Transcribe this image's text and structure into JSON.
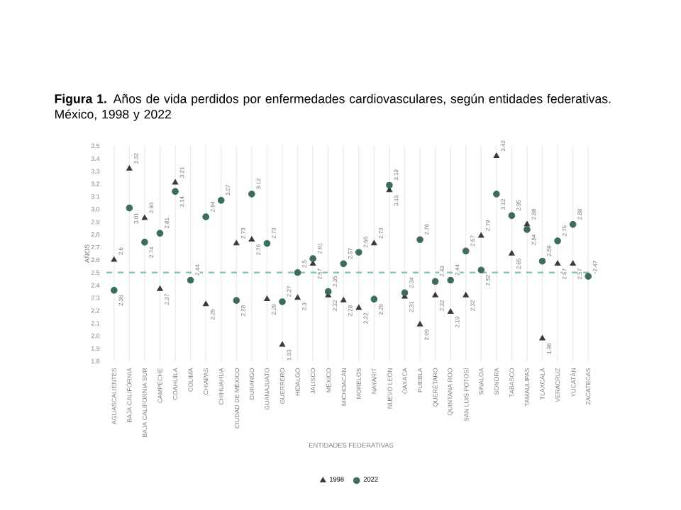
{
  "chart_data": {
    "type": "scatter",
    "title": "**Figura 1.** Años de vida perdidos por enfermedades cardiovasculares, según entidades federativas. México, 1998 y 2022",
    "xlabel": "ENTIDADES FEDERATIVAS",
    "ylabel": "AÑOS",
    "categories": [
      "AGUASCALIENTES",
      "BAJA CALIFORNIA",
      "BAJA CALIFORNIA SUR",
      "CAMPECHE",
      "COAHUILA",
      "COLIMA",
      "CHIAPAS",
      "CHIHUAHUA",
      "CIUDAD DE MÉXICO",
      "DURANGO",
      "GUANAJUATO",
      "GUERRERO",
      "HIDALGO",
      "JALISCO",
      "MÉXICO",
      "MICHOACÁN",
      "MORELOS",
      "NAYARIT",
      "NUEVO LEÓN",
      "OAXACA",
      "PUEBLA",
      "QUERÉTARO",
      "QUINTANA ROO",
      "SAN LUIS POTOSÍ",
      "SINALOA",
      "SONORA",
      "TABASCO",
      "TAMAULIPAS",
      "TLAXCALA",
      "VERACRUZ",
      "YUCATÁN",
      "ZACATECAS"
    ],
    "series": [
      {
        "name": "1998",
        "color": "#3a3a3a",
        "marker": "triangle",
        "values": [
          2.6,
          3.32,
          2.93,
          2.37,
          3.21,
          null,
          2.25,
          null,
          2.73,
          2.76,
          2.29,
          1.93,
          2.3,
          2.57,
          2.32,
          2.28,
          2.22,
          2.73,
          3.15,
          2.31,
          2.09,
          2.32,
          2.19,
          2.32,
          2.79,
          3.42,
          2.65,
          2.88,
          1.98,
          2.57,
          2.57,
          null
        ]
      },
      {
        "name": "2022",
        "color": "#3d6b5e",
        "marker": "circle",
        "values": [
          2.36,
          3.01,
          2.74,
          2.81,
          3.14,
          2.44,
          2.94,
          3.07,
          2.28,
          3.12,
          2.73,
          2.27,
          2.5,
          2.61,
          2.35,
          2.57,
          2.66,
          2.29,
          3.19,
          2.34,
          2.76,
          2.43,
          2.44,
          2.67,
          2.52,
          3.12,
          2.95,
          2.84,
          2.59,
          2.75,
          2.88,
          2.47
        ]
      }
    ],
    "ylim": [
      1.8,
      3.5
    ],
    "yticks": [
      1.8,
      1.9,
      {
        "value": 2,
        "label": "2.0"
      },
      2.1,
      2.2,
      2.3,
      2.4,
      2.5,
      2.6,
      2.7,
      2.8,
      2.9,
      {
        "value": 3,
        "label": "3.0"
      },
      3.1,
      3.2,
      3.3,
      3.4,
      3.5
    ],
    "ref_lines": [
      {
        "axis": "y",
        "value": 2.5,
        "color": "#7fc8b8",
        "line_style": "dashed"
      }
    ],
    "grid": "x",
    "legend": "bottom",
    "data_labels": true
  }
}
